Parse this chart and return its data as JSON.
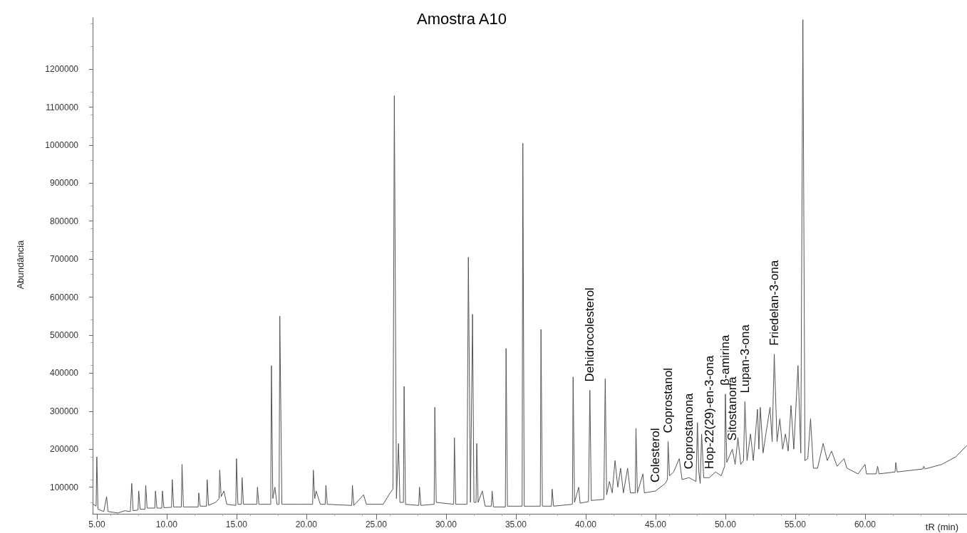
{
  "chart_data": {
    "type": "line",
    "title": "Amostra A10",
    "xlabel": "tR (min)",
    "ylabel": "Abundância",
    "x": [
      4.75,
      4.95,
      5.0,
      5.08,
      5.5,
      5.7,
      5.8,
      6.5,
      7.0,
      7.4,
      7.5,
      7.6,
      7.95,
      8.0,
      8.1,
      8.45,
      8.5,
      8.6,
      9.15,
      9.2,
      9.3,
      9.65,
      9.7,
      9.8,
      10.35,
      10.4,
      10.5,
      11.05,
      11.1,
      11.2,
      12.25,
      12.3,
      12.4,
      12.85,
      12.9,
      13.0,
      13.5,
      13.75,
      13.8,
      13.9,
      14.1,
      14.3,
      14.95,
      15.0,
      15.1,
      15.35,
      15.4,
      15.5,
      16.45,
      16.5,
      16.6,
      17.45,
      17.5,
      17.6,
      17.75,
      17.9,
      18.05,
      18.1,
      18.25,
      19.5,
      20.45,
      20.5,
      20.6,
      20.7,
      21.0,
      21.35,
      21.4,
      21.5,
      23.25,
      23.3,
      23.4,
      24.1,
      24.3,
      25.5,
      26.0,
      26.2,
      26.3,
      26.45,
      26.6,
      26.7,
      26.95,
      27.0,
      27.1,
      28.05,
      28.1,
      28.2,
      29.15,
      29.2,
      29.3,
      30.55,
      30.6,
      30.7,
      31.5,
      31.6,
      31.75,
      31.9,
      32.0,
      32.15,
      32.2,
      32.3,
      32.6,
      32.8,
      33.25,
      33.3,
      33.4,
      34.25,
      34.3,
      34.4,
      35.45,
      35.5,
      35.6,
      36.75,
      36.8,
      36.9,
      37.55,
      37.6,
      37.7,
      39.05,
      39.1,
      39.2,
      39.5,
      39.6,
      40.2,
      40.3,
      40.4,
      41.3,
      41.4,
      41.5,
      41.7,
      41.9,
      42.1,
      42.3,
      42.5,
      42.7,
      43.0,
      43.2,
      43.55,
      43.6,
      43.7,
      44.1,
      44.2,
      45.0,
      45.7,
      45.85,
      45.9,
      46.0,
      46.3,
      46.7,
      46.9,
      47.4,
      47.9,
      48.0,
      48.1,
      48.2,
      48.3,
      48.45,
      48.85,
      49.3,
      49.7,
      49.95,
      50.0,
      50.1,
      50.5,
      50.7,
      50.9,
      51.1,
      51.3,
      51.4,
      51.55,
      51.8,
      52.0,
      52.3,
      52.4,
      52.5,
      52.7,
      52.9,
      53.2,
      53.35,
      53.5,
      53.7,
      53.9,
      54.1,
      54.3,
      54.5,
      54.7,
      54.9,
      55.2,
      55.4,
      55.55,
      55.7,
      55.9,
      56.1,
      56.3,
      56.6,
      57.0,
      57.3,
      57.6,
      58.0,
      58.5,
      58.7,
      59.5,
      60.0,
      60.1,
      60.8,
      60.9,
      61.0,
      62.15,
      62.2,
      62.3,
      64.15,
      64.2,
      64.3,
      65.5,
      66.5,
      67.3
    ],
    "series": [
      {
        "color": "#555555",
        "values": [
          55000,
          50000,
          180000,
          42000,
          36000,
          75000,
          36000,
          32000,
          38000,
          36000,
          110000,
          38000,
          40000,
          90000,
          42000,
          42000,
          105000,
          45000,
          45000,
          90000,
          45000,
          45000,
          90000,
          46000,
          47000,
          120000,
          48000,
          48000,
          160000,
          48000,
          48000,
          85000,
          50000,
          50000,
          120000,
          52000,
          60000,
          70000,
          145000,
          75000,
          90000,
          55000,
          52000,
          175000,
          55000,
          55000,
          125000,
          55000,
          55000,
          100000,
          55000,
          55000,
          420000,
          70000,
          100000,
          55000,
          55000,
          550000,
          55000,
          55000,
          55000,
          145000,
          70000,
          90000,
          55000,
          55000,
          105000,
          55000,
          52000,
          105000,
          52000,
          80000,
          55000,
          55000,
          85000,
          95000,
          1130000,
          70000,
          215000,
          60000,
          60000,
          365000,
          55000,
          52000,
          100000,
          52000,
          55000,
          310000,
          60000,
          55000,
          230000,
          55000,
          55000,
          705000,
          60000,
          555000,
          60000,
          60000,
          215000,
          60000,
          90000,
          50000,
          50000,
          90000,
          48000,
          48000,
          465000,
          50000,
          50000,
          1005000,
          50000,
          50000,
          515000,
          50000,
          50000,
          95000,
          50000,
          55000,
          390000,
          60000,
          100000,
          58000,
          62000,
          355000,
          65000,
          68000,
          385000,
          80000,
          115000,
          85000,
          170000,
          100000,
          150000,
          85000,
          150000,
          85000,
          85000,
          255000,
          85000,
          135000,
          85000,
          90000,
          110000,
          120000,
          220000,
          130000,
          140000,
          175000,
          120000,
          125000,
          115000,
          270000,
          140000,
          110000,
          240000,
          125000,
          125000,
          140000,
          130000,
          155000,
          345000,
          165000,
          200000,
          160000,
          230000,
          160000,
          170000,
          325000,
          170000,
          240000,
          170000,
          305000,
          200000,
          310000,
          190000,
          240000,
          310000,
          220000,
          450000,
          220000,
          280000,
          200000,
          240000,
          195000,
          315000,
          200000,
          420000,
          190000,
          1330000,
          170000,
          175000,
          280000,
          150000,
          150000,
          215000,
          170000,
          195000,
          155000,
          175000,
          150000,
          135000,
          160000,
          135000,
          135000,
          155000,
          135000,
          140000,
          165000,
          140000,
          148000,
          155000,
          148000,
          160000,
          180000,
          210000
        ]
      }
    ],
    "xlim": [
      4.7,
      67.3
    ],
    "xticks": [
      {
        "value": 5,
        "label": "5.00"
      },
      {
        "value": 10,
        "label": "10.00"
      },
      {
        "value": 15,
        "label": "15.00"
      },
      {
        "value": 20,
        "label": "20.00"
      },
      {
        "value": 25,
        "label": "25.00"
      },
      {
        "value": 30,
        "label": "30.00"
      },
      {
        "value": 35,
        "label": "35.00"
      },
      {
        "value": 40,
        "label": "40.00"
      },
      {
        "value": 45,
        "label": "45.00"
      },
      {
        "value": 50,
        "label": "50.00"
      },
      {
        "value": 55,
        "label": "55.00"
      },
      {
        "value": 60,
        "label": "60.00"
      }
    ],
    "ylim": [
      30000,
      1335000
    ],
    "yticks": [
      100000,
      200000,
      300000,
      400000,
      500000,
      600000,
      700000,
      800000,
      900000,
      1000000,
      1100000,
      1200000
    ],
    "annotations": [
      {
        "text": "Dehidrocolesterol",
        "x": 40.3,
        "y": 355000
      },
      {
        "text": "Colesterol",
        "x": 45.0,
        "y": 90000
      },
      {
        "text": "Coprostanol",
        "x": 45.9,
        "y": 220000
      },
      {
        "text": "Coprostanona",
        "x": 47.4,
        "y": 125000
      },
      {
        "text": "Hop-22(29)-en-3-ona",
        "x": 48.85,
        "y": 125000
      },
      {
        "text": "β-amirina",
        "x": 50.0,
        "y": 345000
      },
      {
        "text": "Sitostanona",
        "x": 50.5,
        "y": 200000
      },
      {
        "text": "Lupan-3-ona",
        "x": 51.4,
        "y": 325000
      },
      {
        "text": "Friedelan-3-ona",
        "x": 53.5,
        "y": 450000
      }
    ],
    "grid": false,
    "marker": "none",
    "line_style": "solid"
  }
}
